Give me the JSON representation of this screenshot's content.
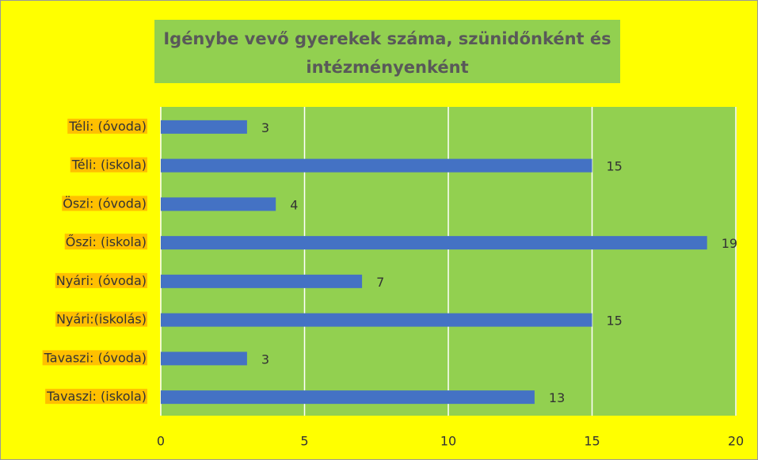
{
  "chart_data": {
    "type": "bar",
    "orientation": "horizontal",
    "title": [
      "Igénybe vevő gyerekek száma, szünidőnként és",
      "intézményenként"
    ],
    "categories": [
      "Téli: (óvoda)",
      "Téli: (iskola)",
      "Öszi: (óvoda)",
      "Őszi: (iskola)",
      "Nyári: (óvoda)",
      "Nyári:(iskolás)",
      "Tavaszi: (óvoda)",
      "Tavaszi: (iskola)"
    ],
    "values": [
      3,
      15,
      4,
      19,
      7,
      15,
      3,
      13
    ],
    "color": "#4472c4",
    "xlim": [
      0,
      20
    ],
    "xticks": [
      0,
      5,
      10,
      15,
      20
    ],
    "grid": true
  }
}
